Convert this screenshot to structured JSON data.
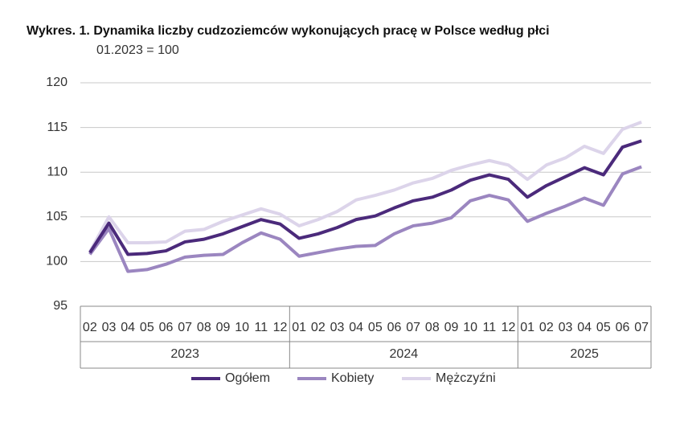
{
  "chart_data": {
    "type": "line",
    "title": "Wykres. 1. Dynamika liczby cudzoziemców wykonujących pracę w Polsce według płci",
    "subtitle": "01.2023 = 100",
    "categories": [
      "02",
      "03",
      "04",
      "05",
      "06",
      "07",
      "08",
      "09",
      "10",
      "11",
      "12",
      "01",
      "02",
      "03",
      "04",
      "05",
      "06",
      "07",
      "08",
      "09",
      "10",
      "11",
      "12",
      "01",
      "02",
      "03",
      "04",
      "05",
      "06",
      "07"
    ],
    "years": [
      "2023",
      "2024",
      "2025"
    ],
    "series": [
      {
        "name": "Ogółem",
        "color": "#4b2a7b",
        "values": [
          101.0,
          104.3,
          100.8,
          100.9,
          101.2,
          102.2,
          102.5,
          103.1,
          103.9,
          104.7,
          104.2,
          102.6,
          103.1,
          103.8,
          104.7,
          105.1,
          106.0,
          106.8,
          107.2,
          108.0,
          109.1,
          109.7,
          109.2,
          107.2,
          108.5,
          109.5,
          110.5,
          109.7,
          112.8,
          113.5
        ]
      },
      {
        "name": "Kobiety",
        "color": "#9b86c0",
        "values": [
          100.8,
          103.7,
          98.9,
          99.1,
          99.7,
          100.5,
          100.7,
          100.8,
          102.1,
          103.2,
          102.5,
          100.6,
          101.0,
          101.4,
          101.7,
          101.8,
          103.1,
          104.0,
          104.3,
          104.9,
          106.8,
          107.4,
          106.9,
          104.5,
          105.4,
          106.2,
          107.1,
          106.3,
          109.8,
          110.6
        ]
      },
      {
        "name": "Mężczyźni",
        "color": "#dcd4ea",
        "values": [
          101.1,
          105.0,
          102.1,
          102.1,
          102.2,
          103.4,
          103.6,
          104.5,
          105.2,
          105.9,
          105.3,
          104.0,
          104.7,
          105.6,
          106.9,
          107.4,
          108.0,
          108.8,
          109.3,
          110.2,
          110.8,
          111.3,
          110.8,
          109.2,
          110.8,
          111.6,
          112.9,
          112.1,
          114.8,
          115.6
        ]
      }
    ],
    "ylim": [
      95,
      120
    ],
    "yticks": [
      95,
      100,
      105,
      110,
      115,
      120
    ],
    "grid": true
  }
}
